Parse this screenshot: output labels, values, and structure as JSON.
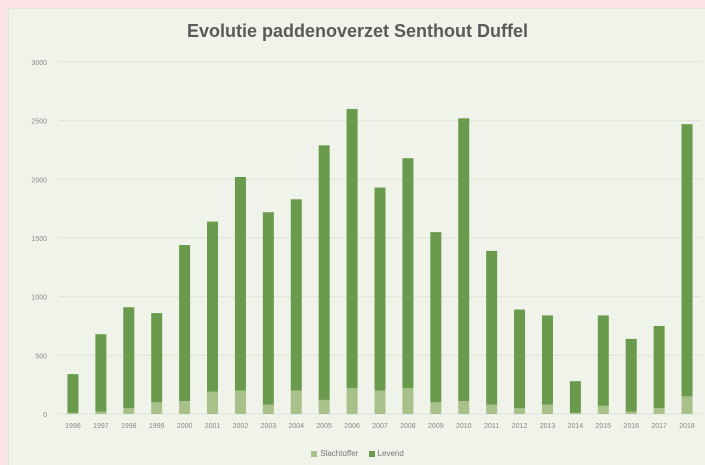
{
  "chart_data": {
    "type": "bar",
    "stacked": true,
    "title": "Evolutie paddenoverzet Senthout Duffel",
    "xlabel": "",
    "ylabel": "",
    "ylim": [
      0,
      3000
    ],
    "yticks": [
      "0",
      "500",
      "1000",
      "1500",
      "2000",
      "2500",
      "3000"
    ],
    "grid": true,
    "legend_position": "bottom",
    "categories": [
      "1996",
      "1997",
      "1998",
      "1999",
      "2000",
      "2001",
      "2002",
      "2003",
      "2004",
      "2005",
      "2006",
      "2007",
      "2008",
      "2009",
      "2010",
      "2011",
      "2012",
      "2013",
      "2014",
      "2015",
      "2016",
      "2017",
      "2018"
    ],
    "series": [
      {
        "name": "Slachtoffer",
        "color": "#a8c08a",
        "values": [
          10,
          20,
          50,
          100,
          110,
          190,
          200,
          80,
          200,
          120,
          220,
          200,
          220,
          100,
          110,
          80,
          50,
          80,
          10,
          70,
          20,
          50,
          150
        ]
      },
      {
        "name": "Levend",
        "color": "#6a9a4c",
        "values": [
          330,
          660,
          860,
          760,
          1330,
          1450,
          1820,
          1640,
          1630,
          2170,
          2380,
          1730,
          1960,
          1450,
          2410,
          1310,
          840,
          760,
          270,
          770,
          620,
          700,
          2320
        ]
      }
    ]
  }
}
